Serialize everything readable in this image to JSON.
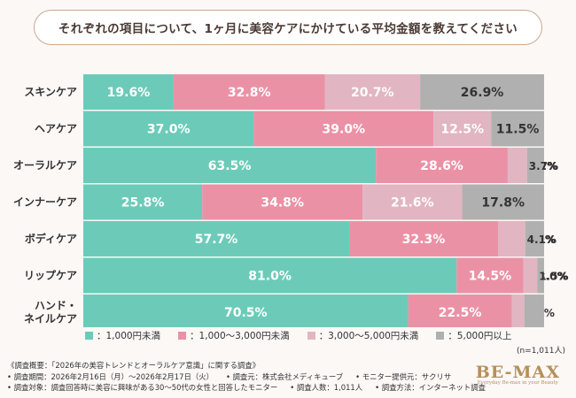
{
  "title": "それぞれの項目について、1ヶ月に美容ケアにかけている平均金額を教えてください",
  "chart_data": {
    "type": "bar",
    "orientation": "horizontal",
    "stacked": true,
    "unit": "%",
    "categories": [
      "スキンケア",
      "ヘアケア",
      "オーラルケア",
      "インナーケア",
      "ボディケア",
      "リップケア",
      "ハンド・ネイルケア"
    ],
    "series": [
      {
        "name": "1,000円未満",
        "color": "#6ccbb8",
        "values": [
          19.6,
          37.0,
          63.5,
          25.8,
          57.7,
          81.0,
          70.5
        ]
      },
      {
        "name": "1,000〜3,000円未満",
        "color": "#eb91a6",
        "values": [
          32.8,
          39.0,
          28.6,
          34.8,
          32.3,
          14.5,
          22.5
        ]
      },
      {
        "name": "3,000〜5,000円未満",
        "color": "#e2b5c2",
        "values": [
          20.7,
          12.5,
          4.2,
          21.6,
          5.9,
          3.0,
          2.7
        ]
      },
      {
        "name": "5,000円以上",
        "color": "#b0b0b0",
        "values": [
          26.9,
          11.5,
          3.7,
          17.8,
          4.1,
          1.5,
          4.3
        ]
      }
    ],
    "xlim": [
      0,
      100
    ]
  },
  "legend": {
    "items": [
      {
        "label": "：1,000円未満",
        "color": "#6ccbb8"
      },
      {
        "label": "：1,000〜3,000円未満",
        "color": "#eb91a6"
      },
      {
        "label": "：3,000〜5,000円未満",
        "color": "#e2b5c2"
      },
      {
        "label": "：5,000円以上",
        "color": "#b0b0b0"
      }
    ]
  },
  "n_note": "(n=1,011人)",
  "footer": {
    "line1": "《調査概要：「2026年の美容トレンドとオーラルケア意識」に関する調査》",
    "line2a": "• 調査期間：2026年2月16日（月）〜2026年2月17日（火）",
    "line2b": "• 調査元：株式会社メディキューブ",
    "line2c": "• モニター提供元：サクリサ",
    "line3a": "• 調査対象：調査回答時に美容に興味がある30〜50代の女性と回答したモニター",
    "line3b": "• 調査人数：1,011人",
    "line3c": "• 調査方法：インターネット調査"
  },
  "brand": {
    "name": "BE-MAX",
    "tagline": "Everyday Be-max in your Beauty"
  }
}
